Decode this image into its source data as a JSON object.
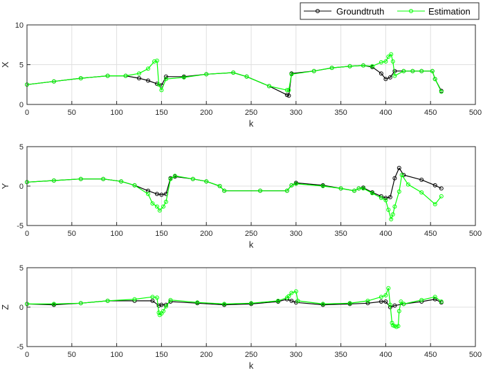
{
  "chart_data": {
    "type": "line",
    "legend": {
      "placement": "top-right",
      "entries": [
        {
          "label": "Groundtruth",
          "color": "#000000",
          "marker": "circle"
        },
        {
          "label": "Estimation",
          "color": "#00ff00",
          "marker": "circle"
        }
      ]
    },
    "grid": true,
    "subplots": [
      {
        "ylabel": "X",
        "xlabel": "k",
        "xlim": [
          0,
          500
        ],
        "ylim": [
          0,
          10
        ],
        "xticks": [
          0,
          50,
          100,
          150,
          200,
          250,
          300,
          350,
          400,
          450,
          500
        ],
        "yticks": [
          0,
          5,
          10
        ],
        "series": [
          {
            "name": "Groundtruth",
            "x": [
              0,
              30,
              60,
              90,
              110,
              125,
              135,
              145,
              150,
              155,
              175,
              200,
              230,
              245,
              270,
              290,
              292,
              295,
              320,
              340,
              360,
              375,
              385,
              395,
              400,
              405,
              410,
              420,
              430,
              440,
              452,
              455,
              462
            ],
            "y": [
              2.5,
              2.9,
              3.3,
              3.6,
              3.6,
              3.3,
              3.0,
              2.6,
              2.4,
              3.5,
              3.5,
              3.8,
              4.0,
              3.5,
              2.3,
              1.2,
              1.1,
              3.9,
              4.2,
              4.6,
              4.8,
              4.9,
              4.7,
              3.9,
              3.2,
              3.4,
              4.2,
              4.2,
              4.2,
              4.2,
              4.2,
              3.2,
              1.7
            ]
          },
          {
            "name": "Estimation",
            "x": [
              0,
              30,
              60,
              90,
              110,
              125,
              135,
              142,
              145,
              147,
              150,
              155,
              175,
              200,
              230,
              245,
              270,
              290,
              292,
              295,
              320,
              340,
              360,
              375,
              385,
              395,
              400,
              403,
              406,
              408,
              410,
              420,
              430,
              440,
              452,
              455,
              462
            ],
            "y": [
              2.5,
              2.9,
              3.3,
              3.6,
              3.6,
              3.9,
              4.5,
              5.4,
              5.5,
              2.5,
              1.8,
              3.2,
              3.4,
              3.8,
              4.0,
              3.5,
              2.3,
              1.8,
              1.8,
              3.8,
              4.2,
              4.6,
              4.8,
              4.9,
              4.8,
              5.3,
              5.4,
              6.0,
              6.3,
              5.4,
              3.6,
              4.2,
              4.2,
              4.2,
              4.2,
              3.2,
              1.6
            ]
          }
        ]
      },
      {
        "ylabel": "Y",
        "xlabel": "k",
        "xlim": [
          0,
          500
        ],
        "ylim": [
          -5,
          5
        ],
        "xticks": [
          0,
          50,
          100,
          150,
          200,
          250,
          300,
          350,
          400,
          450,
          500
        ],
        "yticks": [
          -5,
          0,
          5
        ],
        "series": [
          {
            "name": "Groundtruth",
            "x": [
              0,
              30,
              60,
              85,
              105,
              120,
              135,
              145,
              150,
              155,
              160,
              165,
              185,
              200,
              215,
              220,
              260,
              290,
              295,
              300,
              330,
              350,
              365,
              370,
              375,
              385,
              395,
              400,
              405,
              410,
              415,
              420,
              440,
              455,
              462
            ],
            "y": [
              0.5,
              0.7,
              0.9,
              0.9,
              0.6,
              0.1,
              -0.6,
              -1.0,
              -1.1,
              -1.0,
              1.0,
              1.2,
              0.9,
              0.6,
              0.0,
              -0.6,
              -0.6,
              -0.6,
              0.1,
              0.4,
              0.1,
              -0.3,
              -0.6,
              -0.3,
              -0.2,
              -0.8,
              -1.3,
              -1.5,
              -1.4,
              1.0,
              2.3,
              1.4,
              0.8,
              0.1,
              -0.3
            ]
          },
          {
            "name": "Estimation",
            "x": [
              0,
              30,
              60,
              85,
              105,
              120,
              135,
              140,
              145,
              148,
              152,
              155,
              160,
              165,
              185,
              200,
              215,
              220,
              260,
              290,
              295,
              300,
              330,
              350,
              365,
              370,
              375,
              385,
              395,
              400,
              403,
              406,
              408,
              410,
              415,
              418,
              425,
              440,
              455,
              462
            ],
            "y": [
              0.5,
              0.7,
              0.9,
              0.9,
              0.6,
              0.1,
              -1.0,
              -2.2,
              -2.6,
              -3.1,
              -2.6,
              -2.0,
              0.9,
              1.3,
              0.9,
              0.6,
              0.0,
              -0.6,
              -0.6,
              -0.6,
              0.1,
              0.3,
              0.0,
              -0.3,
              -0.6,
              -0.3,
              -0.3,
              -0.9,
              -1.5,
              -1.8,
              -3.0,
              -4.2,
              -3.6,
              -2.6,
              -0.7,
              1.4,
              0.2,
              -0.8,
              -2.3,
              -1.3
            ]
          }
        ]
      },
      {
        "ylabel": "Z",
        "xlabel": "k",
        "xlim": [
          0,
          500
        ],
        "ylim": [
          -5,
          5
        ],
        "xticks": [
          0,
          50,
          100,
          150,
          200,
          250,
          300,
          350,
          400,
          450,
          500
        ],
        "yticks": [
          -5,
          0,
          5
        ],
        "series": [
          {
            "name": "Groundtruth",
            "x": [
              0,
              30,
              60,
              90,
              120,
              140,
              147,
              150,
              155,
              160,
              190,
              220,
              250,
              280,
              290,
              295,
              300,
              330,
              360,
              380,
              395,
              400,
              405,
              410,
              420,
              440,
              455,
              462
            ],
            "y": [
              0.4,
              0.3,
              0.5,
              0.8,
              0.8,
              0.8,
              0.2,
              0.3,
              0.3,
              0.7,
              0.5,
              0.3,
              0.4,
              0.7,
              1.0,
              0.8,
              0.6,
              0.3,
              0.4,
              0.5,
              0.7,
              0.7,
              0.0,
              0.2,
              0.4,
              0.7,
              1.0,
              0.6
            ]
          },
          {
            "name": "Estimation",
            "x": [
              0,
              30,
              60,
              90,
              120,
              140,
              145,
              147,
              148,
              150,
              152,
              155,
              160,
              190,
              220,
              250,
              280,
              290,
              292,
              295,
              300,
              302,
              330,
              360,
              380,
              395,
              400,
              403,
              405,
              407,
              408,
              410,
              412,
              414,
              415,
              417,
              420,
              440,
              455,
              462
            ],
            "y": [
              0.4,
              0.4,
              0.5,
              0.8,
              1.0,
              1.3,
              1.2,
              -0.7,
              -1.0,
              -0.8,
              -0.5,
              0.1,
              0.9,
              0.6,
              0.4,
              0.5,
              0.8,
              1.2,
              1.4,
              1.8,
              2.0,
              0.8,
              0.4,
              0.5,
              0.8,
              1.3,
              1.5,
              2.4,
              0.3,
              -2.0,
              -2.3,
              -2.4,
              -2.5,
              -2.4,
              -0.5,
              0.7,
              0.4,
              0.9,
              1.3,
              0.7
            ]
          }
        ]
      }
    ]
  }
}
